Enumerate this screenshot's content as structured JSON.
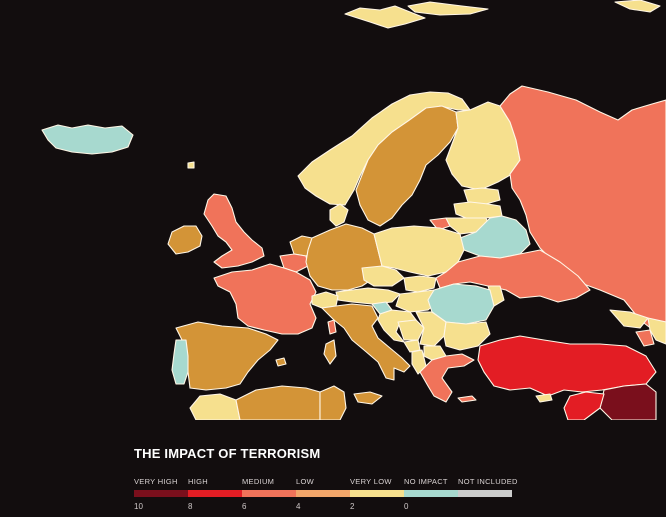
{
  "legend": {
    "title": "THE IMPACT OF TERRORISM",
    "items": [
      {
        "label": "VERY HIGH",
        "value": "10",
        "color": "#7a0f1c"
      },
      {
        "label": "HIGH",
        "value": "8",
        "color": "#e31d24"
      },
      {
        "label": "MEDIUM",
        "value": "6",
        "color": "#f0735a"
      },
      {
        "label": "LOW",
        "value": "4",
        "color": "#f2a66a"
      },
      {
        "label": "VERY LOW",
        "value": "2",
        "color": "#f6e08e"
      },
      {
        "label": "NO IMPACT",
        "value": "0",
        "color": "#a7d9cf"
      },
      {
        "label": "NOT INCLUDED",
        "value": "",
        "color": "#cccccc"
      }
    ]
  },
  "map_colors": {
    "water": "#120d0e",
    "border": "#fff6e6",
    "high": "#e31d24",
    "very_high": "#7a0f1c",
    "medium": "#f0735a",
    "low_ochre": "#d39437",
    "very_low": "#f6e08e",
    "no_impact": "#a7d9cf"
  }
}
